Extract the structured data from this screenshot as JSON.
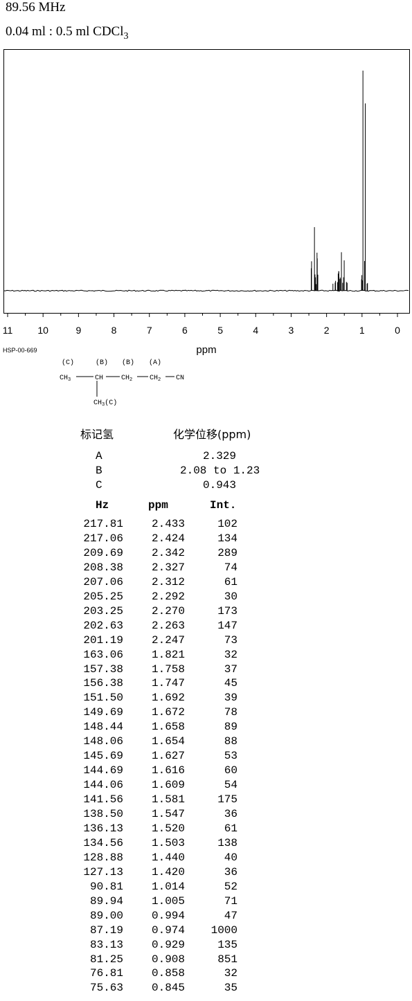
{
  "header": {
    "frequency": "89.56 MHz",
    "concentration_main": "0.04 ml : 0.5 ml CDCl",
    "concentration_sub": "3"
  },
  "chart_data": {
    "type": "line",
    "xlabel": "ppm",
    "xlim": [
      11,
      0
    ],
    "x_ticks": [
      "11",
      "10",
      "9",
      "8",
      "7",
      "6",
      "5",
      "4",
      "3",
      "2",
      "1",
      "0"
    ],
    "peaks": [
      {
        "ppm": 2.433,
        "int": 102
      },
      {
        "ppm": 2.424,
        "int": 134
      },
      {
        "ppm": 2.342,
        "int": 289
      },
      {
        "ppm": 2.327,
        "int": 74
      },
      {
        "ppm": 2.312,
        "int": 61
      },
      {
        "ppm": 2.292,
        "int": 30
      },
      {
        "ppm": 2.27,
        "int": 173
      },
      {
        "ppm": 2.263,
        "int": 147
      },
      {
        "ppm": 2.247,
        "int": 73
      },
      {
        "ppm": 1.821,
        "int": 32
      },
      {
        "ppm": 1.758,
        "int": 37
      },
      {
        "ppm": 1.747,
        "int": 45
      },
      {
        "ppm": 1.692,
        "int": 39
      },
      {
        "ppm": 1.672,
        "int": 78
      },
      {
        "ppm": 1.658,
        "int": 89
      },
      {
        "ppm": 1.654,
        "int": 88
      },
      {
        "ppm": 1.627,
        "int": 53
      },
      {
        "ppm": 1.616,
        "int": 60
      },
      {
        "ppm": 1.609,
        "int": 54
      },
      {
        "ppm": 1.581,
        "int": 175
      },
      {
        "ppm": 1.547,
        "int": 36
      },
      {
        "ppm": 1.52,
        "int": 61
      },
      {
        "ppm": 1.503,
        "int": 138
      },
      {
        "ppm": 1.44,
        "int": 40
      },
      {
        "ppm": 1.42,
        "int": 36
      },
      {
        "ppm": 1.014,
        "int": 52
      },
      {
        "ppm": 1.005,
        "int": 71
      },
      {
        "ppm": 0.994,
        "int": 47
      },
      {
        "ppm": 0.974,
        "int": 1000
      },
      {
        "ppm": 0.929,
        "int": 135
      },
      {
        "ppm": 0.908,
        "int": 851
      },
      {
        "ppm": 0.858,
        "int": 32
      },
      {
        "ppm": 0.845,
        "int": 35
      }
    ]
  },
  "code": "HSP-00-669",
  "structure": {
    "labels_top": [
      "(C)",
      "(B)",
      "(B)",
      "(A)"
    ],
    "ch3": "CH",
    "ch3_sub": "3",
    "ch": "CH",
    "ch2a": "CH",
    "ch2a_sub": "2",
    "ch2b": "CH",
    "ch2b_sub": "2",
    "cn": "CN",
    "branch": "CH",
    "branch_sub": "3",
    "branch_label": "(C)"
  },
  "assignment": {
    "header_label": "标记氢",
    "header_shift": "化学位移(ppm)",
    "rows": [
      {
        "label": "A",
        "shift": "2.329"
      },
      {
        "label": "B",
        "shift": "2.08 to 1.23"
      },
      {
        "label": "C",
        "shift": "0.943"
      }
    ]
  },
  "peak_table": {
    "headers": [
      "Hz",
      "ppm",
      "Int."
    ],
    "rows": [
      [
        "217.81",
        "2.433",
        "102"
      ],
      [
        "217.06",
        "2.424",
        "134"
      ],
      [
        "209.69",
        "2.342",
        "289"
      ],
      [
        "208.38",
        "2.327",
        "74"
      ],
      [
        "207.06",
        "2.312",
        "61"
      ],
      [
        "205.25",
        "2.292",
        "30"
      ],
      [
        "203.25",
        "2.270",
        "173"
      ],
      [
        "202.63",
        "2.263",
        "147"
      ],
      [
        "201.19",
        "2.247",
        "73"
      ],
      [
        "163.06",
        "1.821",
        "32"
      ],
      [
        "157.38",
        "1.758",
        "37"
      ],
      [
        "156.38",
        "1.747",
        "45"
      ],
      [
        "151.50",
        "1.692",
        "39"
      ],
      [
        "149.69",
        "1.672",
        "78"
      ],
      [
        "148.44",
        "1.658",
        "89"
      ],
      [
        "148.06",
        "1.654",
        "88"
      ],
      [
        "145.69",
        "1.627",
        "53"
      ],
      [
        "144.69",
        "1.616",
        "60"
      ],
      [
        "144.06",
        "1.609",
        "54"
      ],
      [
        "141.56",
        "1.581",
        "175"
      ],
      [
        "138.50",
        "1.547",
        "36"
      ],
      [
        "136.13",
        "1.520",
        "61"
      ],
      [
        "134.56",
        "1.503",
        "138"
      ],
      [
        "128.88",
        "1.440",
        "40"
      ],
      [
        "127.13",
        "1.420",
        "36"
      ],
      [
        "90.81",
        "1.014",
        "52"
      ],
      [
        "89.94",
        "1.005",
        "71"
      ],
      [
        "89.00",
        "0.994",
        "47"
      ],
      [
        "87.19",
        "0.974",
        "1000"
      ],
      [
        "83.13",
        "0.929",
        "135"
      ],
      [
        "81.25",
        "0.908",
        "851"
      ],
      [
        "76.81",
        "0.858",
        "32"
      ],
      [
        "75.63",
        "0.845",
        "35"
      ]
    ]
  }
}
